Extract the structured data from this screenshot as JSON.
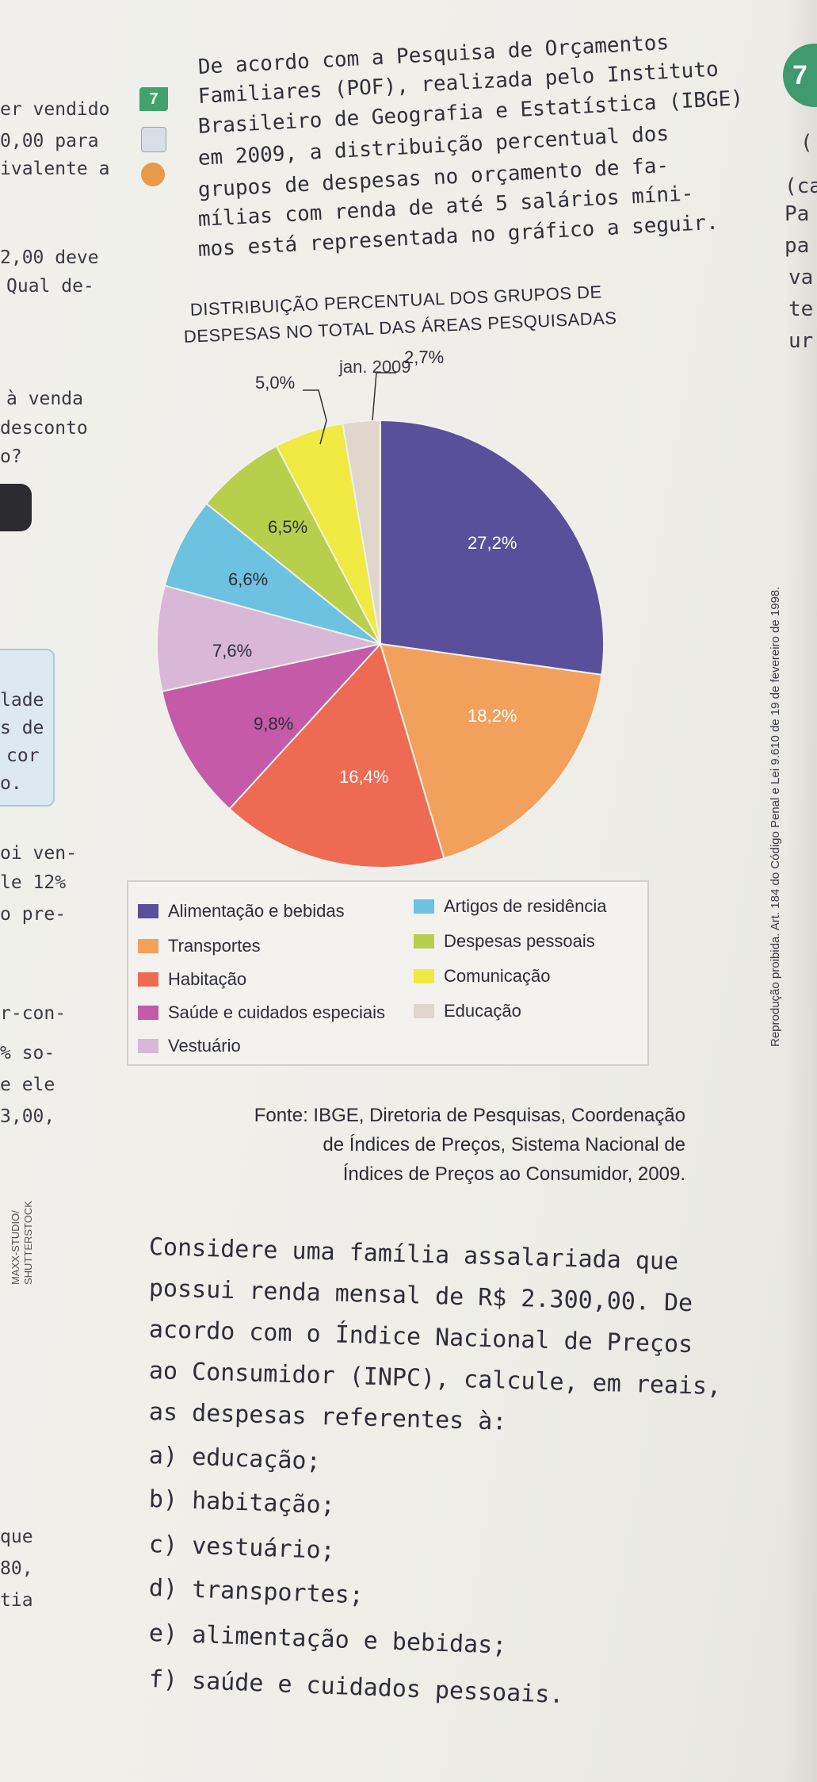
{
  "left_column": {
    "fragments": [
      "er vendido",
      "0,00 para",
      "ivalente a",
      "2,00 deve",
      "Qual de-",
      "à venda",
      "desconto",
      "o?",
      "lade",
      "s de",
      "cor",
      "o.",
      "oi ven-",
      "le 12%",
      "o pre-",
      "r-con-",
      "% so-",
      "e ele",
      "3,00,",
      "que",
      "80,",
      "tia"
    ]
  },
  "right_column": {
    "fragments": [
      "(",
      "(ca",
      "Pa",
      "pa",
      "va",
      "te",
      "ur"
    ],
    "badge": "7"
  },
  "question": {
    "number": "7",
    "intro_lines": [
      "De acordo com a Pesquisa de Orçamentos",
      "Familiares (POF), realizada pelo Instituto",
      "Brasileiro de Geografia e Estatística (IBGE)",
      "em 2009, a distribuição percentual dos",
      "grupos de despesas no orçamento de fa-",
      "mílias com renda de até 5 salários míni-",
      "mos está representada no gráfico a seguir."
    ],
    "source_lines": [
      "Fonte: IBGE, Diretoria de Pesquisas, Coordenação",
      "de Índices de Preços, Sistema Nacional de",
      "Índices de Preços ao Consumidor, 2009."
    ],
    "body_lines": [
      "Considere uma família assalariada que",
      "possui renda mensal de R$ 2.300,00. De",
      "acordo com o Índice Nacional de Preços",
      "ao Consumidor (INPC), calcule, em reais,",
      "as despesas referentes à:"
    ],
    "items": [
      {
        "letter": "a)",
        "text": "educação;"
      },
      {
        "letter": "b)",
        "text": "habitação;"
      },
      {
        "letter": "c)",
        "text": "vestuário;"
      },
      {
        "letter": "d)",
        "text": "transportes;"
      },
      {
        "letter": "e)",
        "text": "alimentação e bebidas;"
      },
      {
        "letter": "f)",
        "text": "saúde e cuidados pessoais."
      }
    ]
  },
  "side_notes": {
    "law": "Reprodução proibida. Art. 184 do Código Penal e Lei 9.610 de 19 de fevereiro de 1998.",
    "photo_credit_1": "MAXX-STUDIO/",
    "photo_credit_2": "SHUTTERSTOCK"
  },
  "colors": {
    "alimentacao": "#5a4f9b",
    "transportes": "#f2a15c",
    "habitacao": "#ef6a52",
    "saude": "#c45aa8",
    "vestuario": "#d9b7d7",
    "artigos": "#6cc2e0",
    "pessoais": "#b7cf4a",
    "comunicacao": "#f0ea43",
    "educacao": "#e0d6cb",
    "badge_green": "#3fa36b"
  },
  "chart_data": {
    "type": "pie",
    "title_line1": "DISTRIBUIÇÃO PERCENTUAL DOS GRUPOS DE",
    "title_line2": "DESPESAS NO TOTAL DAS ÁREAS PESQUISADAS",
    "subtitle": "jan. 2009",
    "slices": [
      {
        "name": "Alimentação e bebidas",
        "value": 27.2,
        "label": "27,2%",
        "color": "#5a4f9b"
      },
      {
        "name": "Transportes",
        "value": 18.2,
        "label": "18,2%",
        "color": "#f2a15c"
      },
      {
        "name": "Habitação",
        "value": 16.4,
        "label": "16,4%",
        "color": "#ef6a52"
      },
      {
        "name": "Saúde e cuidados especiais",
        "value": 9.8,
        "label": "9,8%",
        "color": "#c45aa8"
      },
      {
        "name": "Vestuário",
        "value": 7.6,
        "label": "7,6%",
        "color": "#d9b7d7"
      },
      {
        "name": "Artigos de residência",
        "value": 6.6,
        "label": "6,6%",
        "color": "#6cc2e0"
      },
      {
        "name": "Despesas pessoais",
        "value": 6.5,
        "label": "6,5%",
        "color": "#b7cf4a"
      },
      {
        "name": "Comunicação",
        "value": 5.0,
        "label": "5,0%",
        "color": "#f0ea43"
      },
      {
        "name": "Educação",
        "value": 2.7,
        "label": "2,7%",
        "color": "#e0d6cb"
      }
    ],
    "legend_left": [
      "Alimentação e bebidas",
      "Transportes",
      "Habitação",
      "Saúde e cuidados especiais",
      "Vestuário"
    ],
    "legend_right": [
      "Artigos de residência",
      "Despesas pessoais",
      "Comunicação",
      "Educação"
    ]
  }
}
